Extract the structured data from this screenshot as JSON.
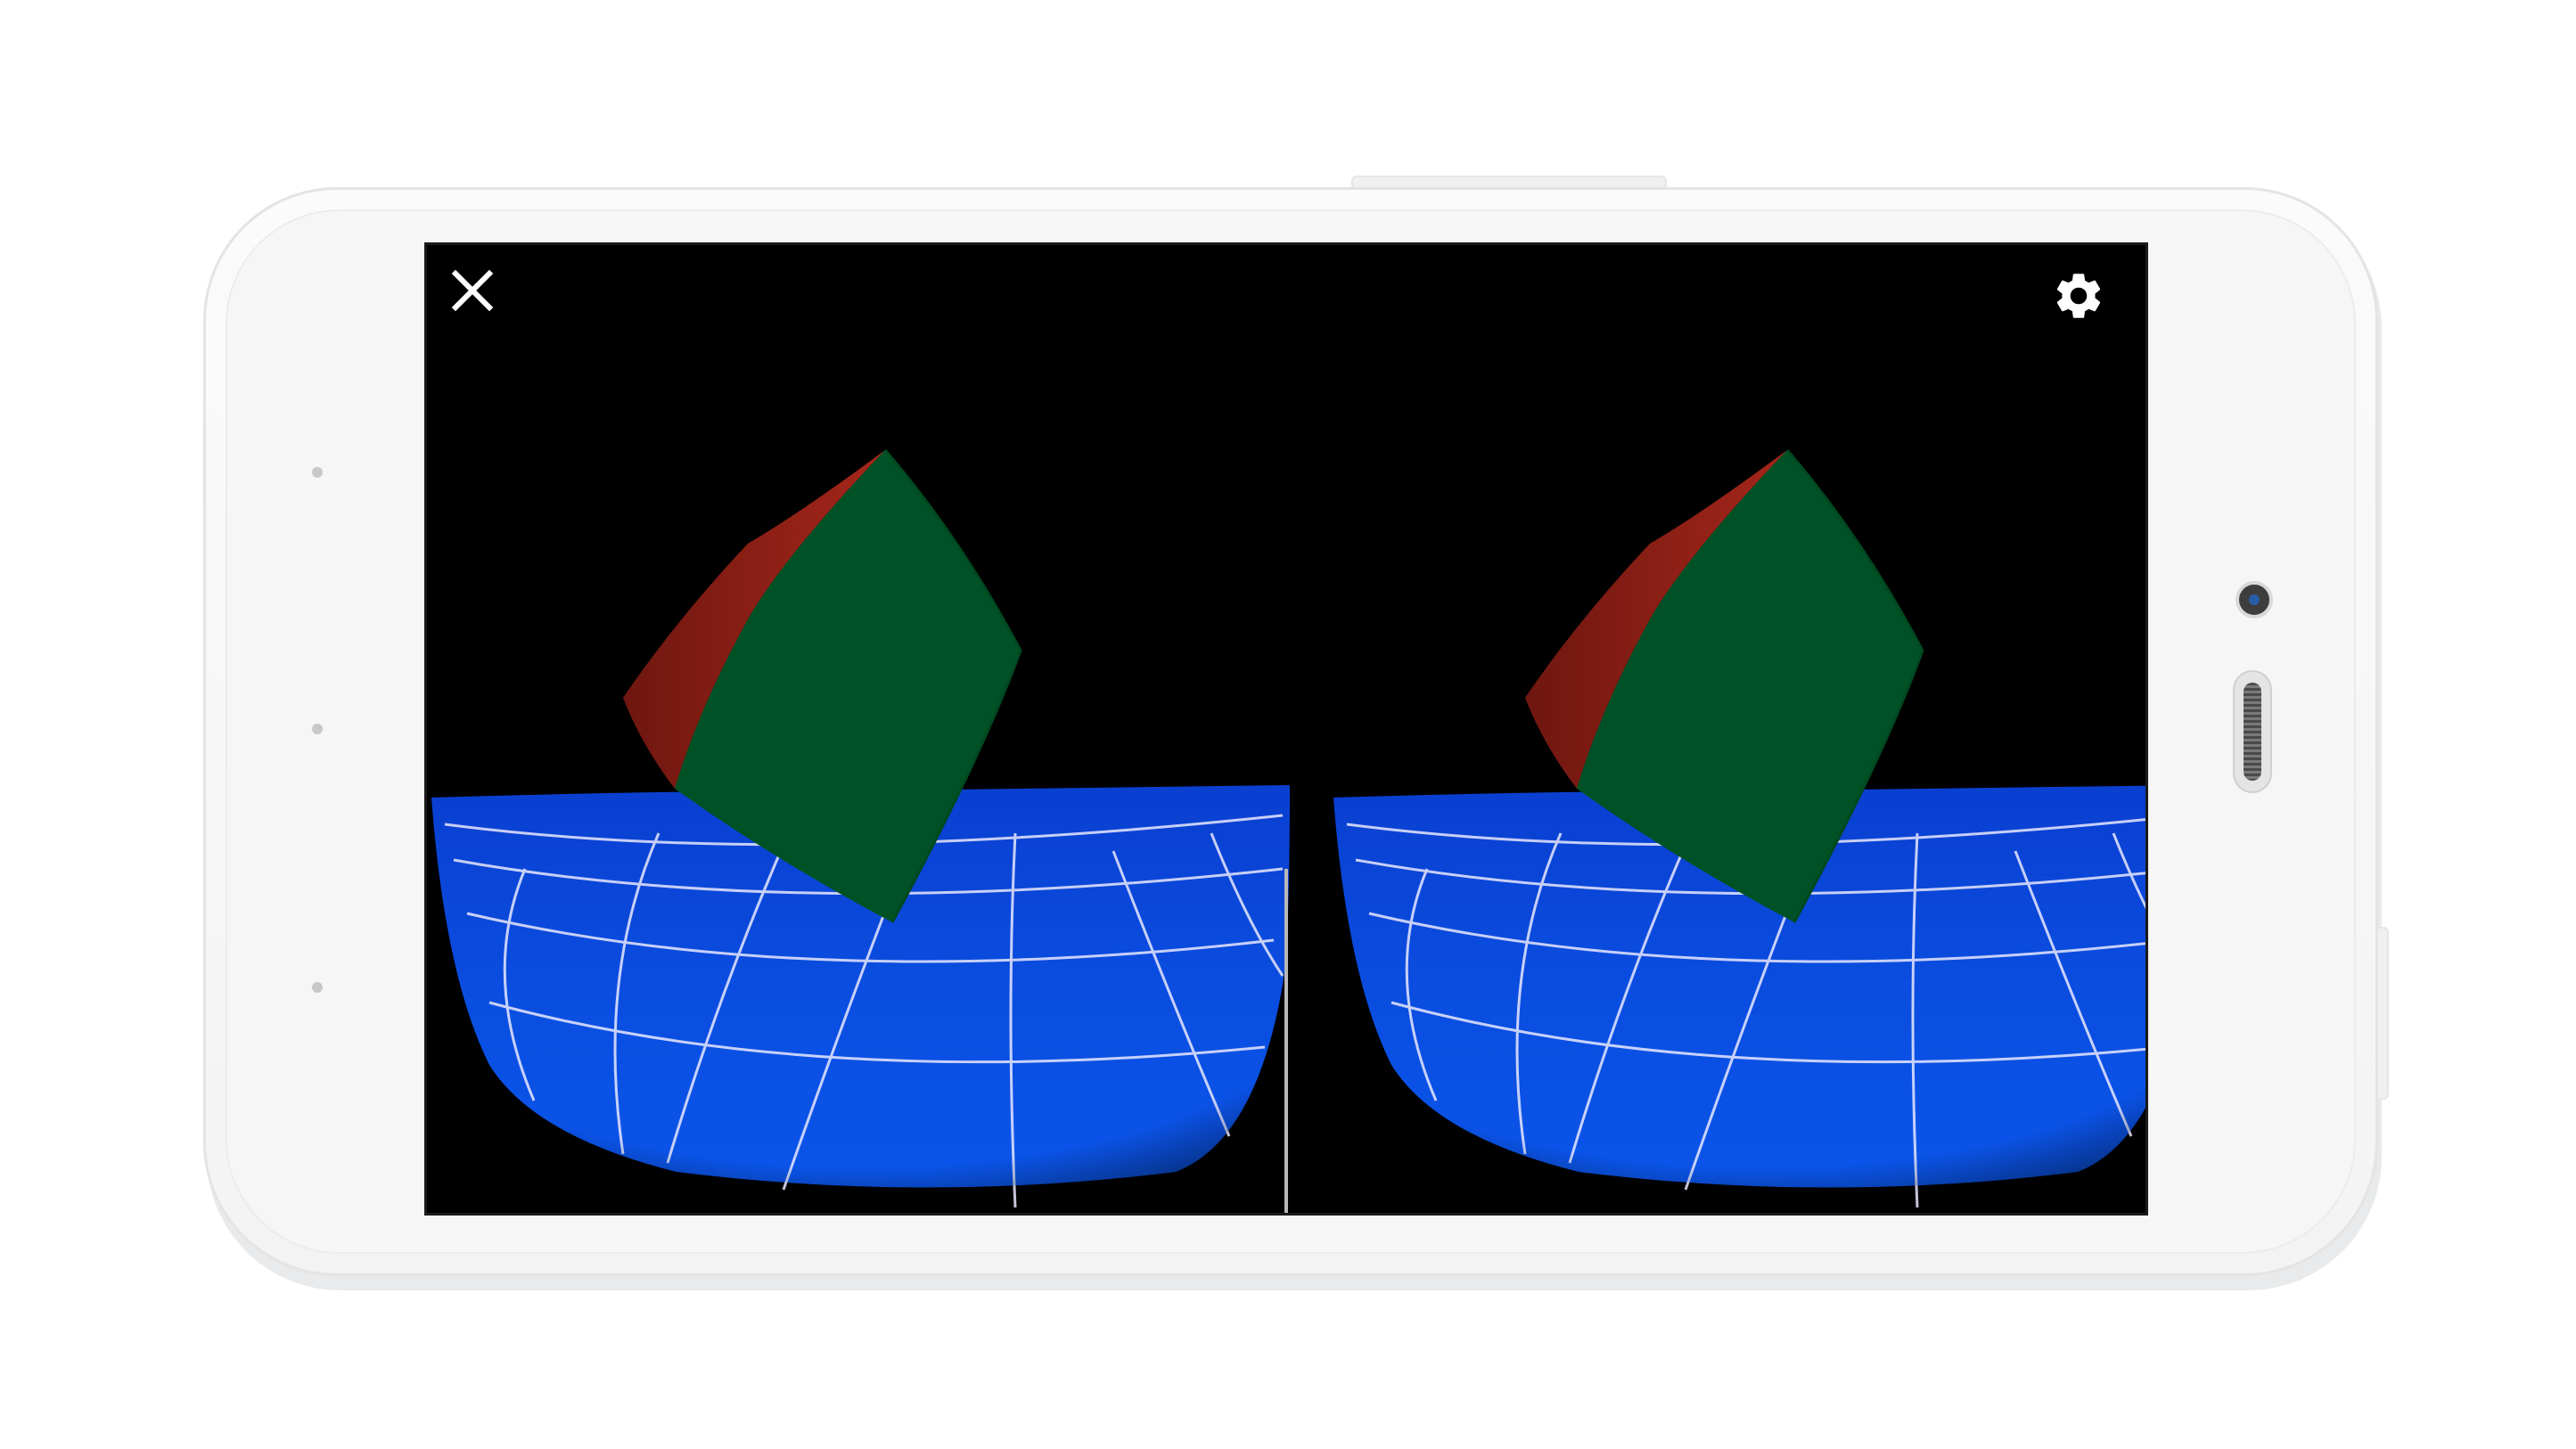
{
  "app": {
    "mode": "VR stereo view",
    "toolbar": {
      "close_icon": "close-icon",
      "settings_icon": "settings-gear-icon"
    }
  },
  "scene": {
    "background_color": "#000000",
    "floor_color": "#0a4de0",
    "grid_color": "#e8e8ff",
    "cube_front_color": "#005226",
    "cube_side_color": "#9a2318",
    "divider_color": "#b8b8b8"
  },
  "device": {
    "frame_color": "#f7f7f7",
    "screen_bezel_color": "#1a1a1a"
  }
}
